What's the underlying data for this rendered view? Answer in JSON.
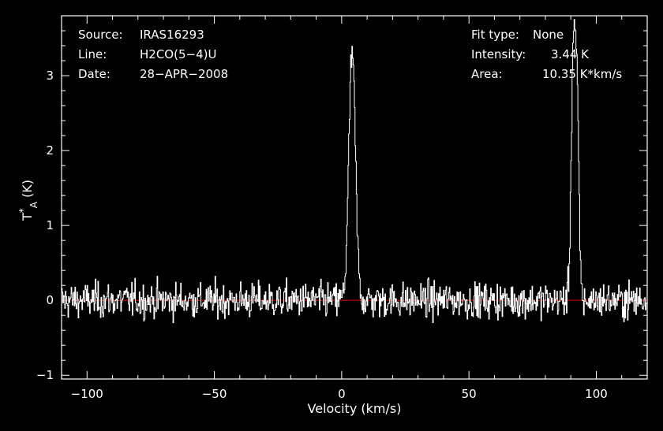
{
  "info_left": {
    "source_label": "Source:",
    "source_value": "IRAS16293",
    "line_label": "Line:",
    "line_value": "H2CO(5−4)U",
    "date_label": "Date:",
    "date_value": "28−APR−2008"
  },
  "info_right": {
    "fit_label": "Fit type:",
    "fit_value": "None",
    "intensity_label": "Intensity:",
    "intensity_value": "3.44 K",
    "area_label": "Area:",
    "area_value": "10.35 K*km/s"
  },
  "colors": {
    "background": "#000000",
    "axes": "#ffffff",
    "spectrum": "#ffffff",
    "baseline": "#cc0000"
  },
  "chart_data": {
    "type": "line",
    "xlabel": "Velocity (km/s)",
    "ylabel": "T*A (K)",
    "xlim": [
      -110,
      120
    ],
    "ylim": [
      -1.05,
      3.8
    ],
    "xticks": [
      -100,
      -50,
      0,
      50,
      100
    ],
    "xtick_labels": [
      "−100",
      "−50",
      "0",
      "50",
      "100"
    ],
    "yticks": [
      -1,
      0,
      1,
      2,
      3
    ],
    "ytick_labels": [
      "−1",
      "0",
      "1",
      "2",
      "3"
    ],
    "grid": false,
    "baseline_y": 0,
    "noise_rms": 0.22,
    "channel_width_kms": 0.25,
    "peaks": [
      {
        "center": 4.0,
        "amplitude": 3.3,
        "width": 1.3
      },
      {
        "center": 91.0,
        "amplitude": 3.5,
        "width": 0.9
      },
      {
        "center": 92.5,
        "amplitude": 1.9,
        "width": 0.7
      }
    ],
    "peak_intensity": 3.44,
    "integrated_area": 10.35
  }
}
